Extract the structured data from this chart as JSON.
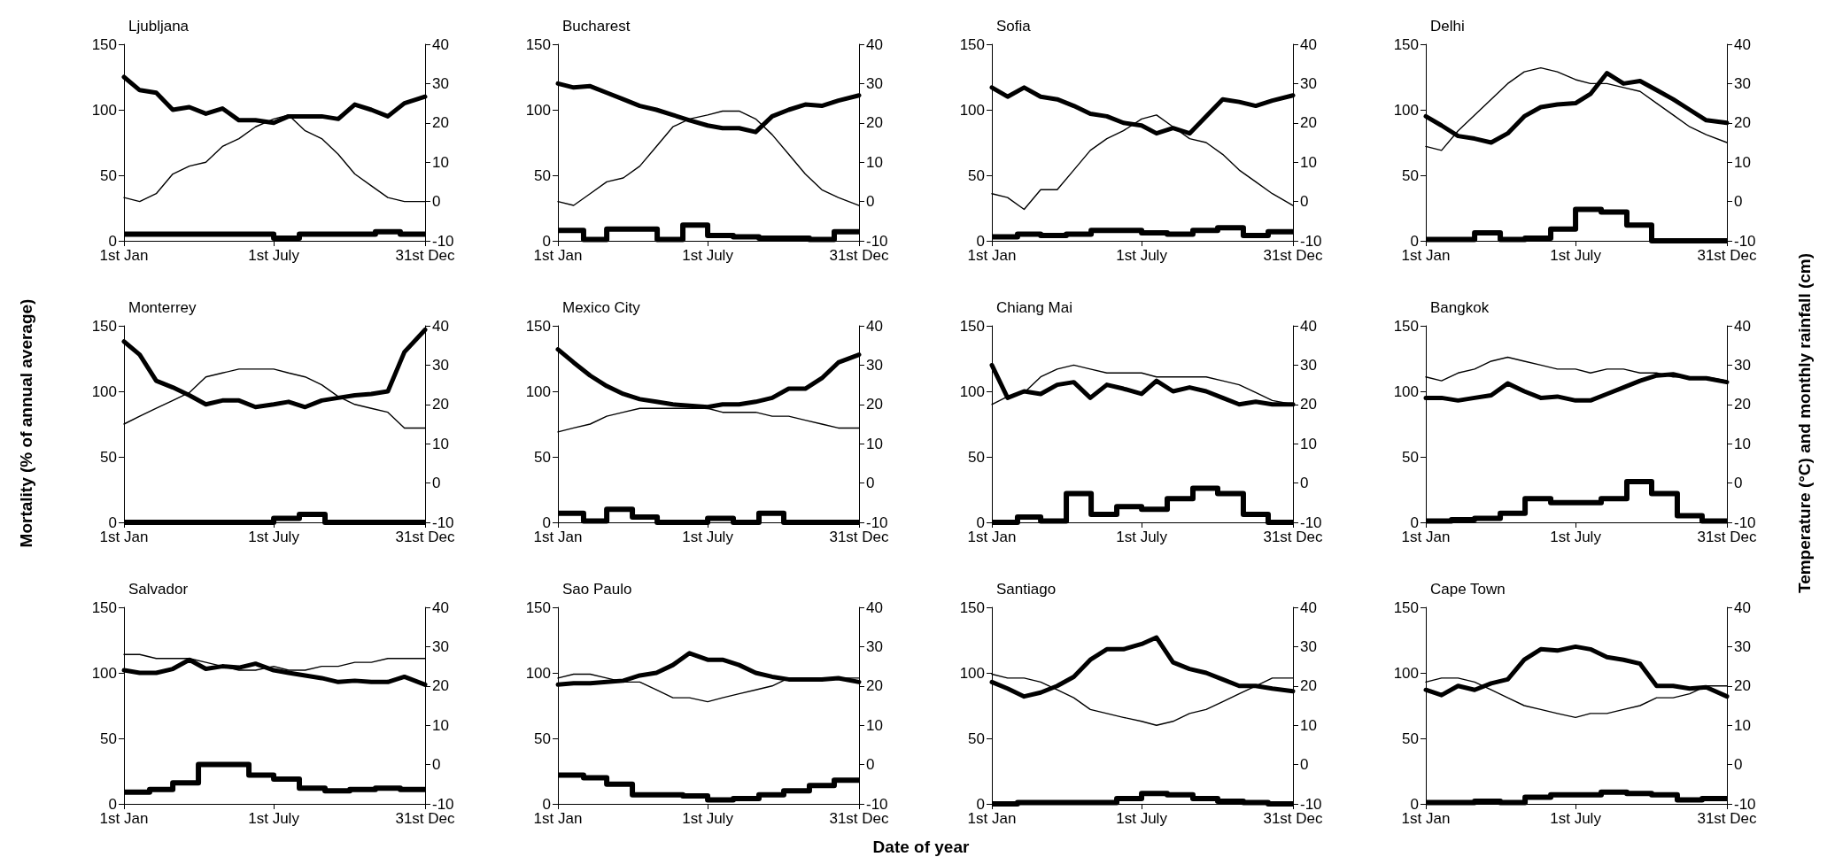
{
  "chart_data": [
    {
      "type": "line",
      "title": "Ljubljana",
      "x": [
        "--01-01",
        "--01-20",
        "--02-09",
        "--03-01",
        "--03-21",
        "--04-10",
        "--04-30",
        "--05-20",
        "--06-09",
        "--07-01",
        "--07-19",
        "--08-08",
        "--08-28",
        "--09-17",
        "--10-07",
        "--10-27",
        "--11-16",
        "--12-06",
        "--12-31"
      ],
      "xlim": [
        "--01-01",
        "--12-31"
      ],
      "xticks": [
        {
          "value": "--01-01",
          "label": "1st Jan"
        },
        {
          "value": "--07-01",
          "label": "1st July"
        },
        {
          "value": "--12-31",
          "label": "31st Dec"
        }
      ],
      "ylim": [
        0,
        150
      ],
      "yticks": [
        0,
        50,
        100,
        150
      ],
      "y2lim": [
        -10,
        40
      ],
      "y2ticks": [
        -10,
        0,
        10,
        20,
        30,
        40
      ],
      "marker": "none",
      "grid": false,
      "series": [
        {
          "color": "#000000",
          "values": [
            125,
            115,
            113,
            100,
            102,
            97,
            101,
            92,
            92,
            90,
            95,
            95,
            95,
            93,
            104,
            100,
            95,
            105,
            110
          ]
        },
        {
          "color": "#000000",
          "axis": "y2",
          "values": [
            1,
            0,
            2,
            7,
            9,
            10,
            14,
            16,
            19,
            21,
            22,
            18,
            16,
            12,
            7,
            4,
            1,
            0,
            0
          ]
        },
        {
          "type": "step",
          "color": "#000000",
          "x": [
            "--01-01",
            "--02-01",
            "--03-01",
            "--04-01",
            "--05-01",
            "--06-01",
            "--07-01",
            "--08-01",
            "--09-01",
            "--10-01",
            "--11-01",
            "--12-01",
            "--12-31"
          ],
          "values": [
            5,
            5,
            5,
            5,
            5,
            5,
            2,
            5,
            5,
            5,
            7,
            5,
            5
          ]
        }
      ]
    },
    {
      "type": "line",
      "title": "Bucharest",
      "x": [
        "--01-01",
        "--01-20",
        "--02-09",
        "--03-01",
        "--03-21",
        "--04-10",
        "--04-30",
        "--05-20",
        "--06-09",
        "--07-01",
        "--07-19",
        "--08-08",
        "--08-28",
        "--09-17",
        "--10-07",
        "--10-27",
        "--11-16",
        "--12-06",
        "--12-31"
      ],
      "xlim": [
        "--01-01",
        "--12-31"
      ],
      "xticks": [
        {
          "value": "--01-01",
          "label": "1st Jan"
        },
        {
          "value": "--07-01",
          "label": "1st July"
        },
        {
          "value": "--12-31",
          "label": "31st Dec"
        }
      ],
      "ylim": [
        0,
        150
      ],
      "yticks": [
        0,
        50,
        100,
        150
      ],
      "y2lim": [
        -10,
        40
      ],
      "y2ticks": [
        -10,
        0,
        10,
        20,
        30,
        40
      ],
      "marker": "none",
      "grid": false,
      "series": [
        {
          "color": "#000000",
          "values": [
            120,
            117,
            118,
            113,
            108,
            103,
            100,
            96,
            92,
            88,
            86,
            86,
            83,
            95,
            100,
            104,
            103,
            107,
            111
          ]
        },
        {
          "color": "#000000",
          "axis": "y2",
          "values": [
            0,
            -1,
            2,
            5,
            6,
            9,
            14,
            19,
            21,
            22,
            23,
            23,
            21,
            17,
            12,
            7,
            3,
            1,
            -1
          ]
        },
        {
          "type": "step",
          "color": "#000000",
          "x": [
            "--01-01",
            "--02-01",
            "--03-01",
            "--04-01",
            "--05-01",
            "--06-01",
            "--07-01",
            "--08-01",
            "--09-01",
            "--10-01",
            "--11-01",
            "--12-01",
            "--12-31"
          ],
          "values": [
            8,
            1,
            9,
            9,
            1,
            12,
            4,
            3,
            2,
            2,
            1,
            7,
            7
          ]
        }
      ]
    },
    {
      "type": "line",
      "title": "Sofia",
      "x": [
        "--01-01",
        "--01-20",
        "--02-09",
        "--03-01",
        "--03-21",
        "--04-10",
        "--04-30",
        "--05-20",
        "--06-09",
        "--07-01",
        "--07-19",
        "--08-08",
        "--08-28",
        "--09-17",
        "--10-07",
        "--10-27",
        "--11-16",
        "--12-06",
        "--12-31"
      ],
      "xlim": [
        "--01-01",
        "--12-31"
      ],
      "xticks": [
        {
          "value": "--01-01",
          "label": "1st Jan"
        },
        {
          "value": "--07-01",
          "label": "1st July"
        },
        {
          "value": "--12-31",
          "label": "31st Dec"
        }
      ],
      "ylim": [
        0,
        150
      ],
      "yticks": [
        0,
        50,
        100,
        150
      ],
      "y2lim": [
        -10,
        40
      ],
      "y2ticks": [
        -10,
        0,
        10,
        20,
        30,
        40
      ],
      "marker": "none",
      "grid": false,
      "series": [
        {
          "color": "#000000",
          "values": [
            117,
            110,
            117,
            110,
            108,
            103,
            97,
            95,
            90,
            88,
            82,
            86,
            82,
            95,
            108,
            106,
            103,
            107,
            111
          ]
        },
        {
          "color": "#000000",
          "axis": "y2",
          "values": [
            2,
            1,
            -2,
            3,
            3,
            8,
            13,
            16,
            18,
            21,
            22,
            19,
            16,
            15,
            12,
            8,
            5,
            2,
            -1
          ]
        },
        {
          "type": "step",
          "color": "#000000",
          "x": [
            "--01-01",
            "--02-01",
            "--03-01",
            "--04-01",
            "--05-01",
            "--06-01",
            "--07-01",
            "--08-01",
            "--09-01",
            "--10-01",
            "--11-01",
            "--12-01",
            "--12-31"
          ],
          "values": [
            3,
            5,
            4,
            5,
            8,
            8,
            6,
            5,
            8,
            10,
            4,
            7,
            7
          ]
        }
      ]
    },
    {
      "type": "line",
      "title": "Delhi",
      "x": [
        "--01-01",
        "--01-20",
        "--02-09",
        "--03-01",
        "--03-21",
        "--04-10",
        "--04-30",
        "--05-20",
        "--06-09",
        "--07-01",
        "--07-19",
        "--08-08",
        "--08-28",
        "--09-17",
        "--10-07",
        "--10-27",
        "--11-16",
        "--12-06",
        "--12-31"
      ],
      "xlim": [
        "--01-01",
        "--12-31"
      ],
      "xticks": [
        {
          "value": "--01-01",
          "label": "1st Jan"
        },
        {
          "value": "--07-01",
          "label": "1st July"
        },
        {
          "value": "--12-31",
          "label": "31st Dec"
        }
      ],
      "ylim": [
        0,
        150
      ],
      "yticks": [
        0,
        50,
        100,
        150
      ],
      "y2lim": [
        -10,
        40
      ],
      "y2ticks": [
        -10,
        0,
        10,
        20,
        30,
        40
      ],
      "marker": "none",
      "grid": false,
      "series": [
        {
          "color": "#000000",
          "values": [
            95,
            88,
            80,
            78,
            75,
            82,
            95,
            102,
            104,
            105,
            112,
            128,
            120,
            122,
            115,
            108,
            100,
            92,
            90
          ]
        },
        {
          "color": "#000000",
          "axis": "y2",
          "values": [
            14,
            13,
            18,
            22,
            26,
            30,
            33,
            34,
            33,
            31,
            30,
            30,
            29,
            28,
            25,
            22,
            19,
            17,
            15
          ]
        },
        {
          "type": "step",
          "color": "#000000",
          "x": [
            "--01-01",
            "--02-01",
            "--03-01",
            "--04-01",
            "--05-01",
            "--06-01",
            "--07-01",
            "--08-01",
            "--09-01",
            "--10-01",
            "--11-01",
            "--12-01",
            "--12-31"
          ],
          "values": [
            1,
            1,
            6,
            1,
            2,
            9,
            24,
            22,
            12,
            0,
            0,
            0,
            0
          ]
        }
      ]
    },
    {
      "type": "line",
      "title": "Monterrey",
      "ylabel": "Mortality (% of annual average)",
      "x": [
        "--01-01",
        "--01-20",
        "--02-09",
        "--03-01",
        "--03-21",
        "--04-10",
        "--04-30",
        "--05-20",
        "--06-09",
        "--07-01",
        "--07-19",
        "--08-08",
        "--08-28",
        "--09-17",
        "--10-07",
        "--10-27",
        "--11-16",
        "--12-06",
        "--12-31"
      ],
      "xlim": [
        "--01-01",
        "--12-31"
      ],
      "xticks": [
        {
          "value": "--01-01",
          "label": "1st Jan"
        },
        {
          "value": "--07-01",
          "label": "1st July"
        },
        {
          "value": "--12-31",
          "label": "31st Dec"
        }
      ],
      "ylim": [
        0,
        150
      ],
      "yticks": [
        0,
        50,
        100,
        150
      ],
      "y2lim": [
        -10,
        40
      ],
      "y2ticks": [
        -10,
        0,
        10,
        20,
        30,
        40
      ],
      "marker": "none",
      "grid": false,
      "series": [
        {
          "color": "#000000",
          "values": [
            138,
            128,
            108,
            103,
            97,
            90,
            93,
            93,
            88,
            90,
            92,
            88,
            93,
            95,
            97,
            98,
            100,
            130,
            147
          ]
        },
        {
          "color": "#000000",
          "axis": "y2",
          "values": [
            15,
            17,
            19,
            21,
            23,
            27,
            28,
            29,
            29,
            29,
            28,
            27,
            25,
            22,
            20,
            19,
            18,
            14,
            14
          ]
        },
        {
          "type": "step",
          "color": "#000000",
          "x": [
            "--01-01",
            "--02-01",
            "--03-01",
            "--04-01",
            "--05-01",
            "--06-01",
            "--07-01",
            "--08-01",
            "--09-01",
            "--10-01",
            "--11-01",
            "--12-01",
            "--12-31"
          ],
          "values": [
            0,
            0,
            0,
            0,
            0,
            0,
            3,
            6,
            0,
            0,
            0,
            0,
            0
          ]
        }
      ]
    },
    {
      "type": "line",
      "title": "Mexico City",
      "x": [
        "--01-01",
        "--01-20",
        "--02-09",
        "--03-01",
        "--03-21",
        "--04-10",
        "--04-30",
        "--05-20",
        "--06-09",
        "--07-01",
        "--07-19",
        "--08-08",
        "--08-28",
        "--09-17",
        "--10-07",
        "--10-27",
        "--11-16",
        "--12-06",
        "--12-31"
      ],
      "xlim": [
        "--01-01",
        "--12-31"
      ],
      "xticks": [
        {
          "value": "--01-01",
          "label": "1st Jan"
        },
        {
          "value": "--07-01",
          "label": "1st July"
        },
        {
          "value": "--12-31",
          "label": "31st Dec"
        }
      ],
      "ylim": [
        0,
        150
      ],
      "yticks": [
        0,
        50,
        100,
        150
      ],
      "y2lim": [
        -10,
        40
      ],
      "y2ticks": [
        -10,
        0,
        10,
        20,
        30,
        40
      ],
      "marker": "none",
      "grid": false,
      "series": [
        {
          "color": "#000000",
          "values": [
            132,
            122,
            112,
            104,
            98,
            94,
            92,
            90,
            89,
            88,
            90,
            90,
            92,
            95,
            102,
            102,
            110,
            122,
            128
          ]
        },
        {
          "color": "#000000",
          "axis": "y2",
          "values": [
            13,
            14,
            15,
            17,
            18,
            19,
            19,
            19,
            19,
            19,
            18,
            18,
            18,
            17,
            17,
            16,
            15,
            14,
            14
          ]
        },
        {
          "type": "step",
          "color": "#000000",
          "x": [
            "--01-01",
            "--02-01",
            "--03-01",
            "--04-01",
            "--05-01",
            "--06-01",
            "--07-01",
            "--08-01",
            "--09-01",
            "--10-01",
            "--11-01",
            "--12-01",
            "--12-31"
          ],
          "values": [
            7,
            1,
            10,
            4,
            0,
            0,
            3,
            0,
            7,
            0,
            0,
            0,
            0
          ]
        }
      ]
    },
    {
      "type": "line",
      "title": "Chiang Mai",
      "x": [
        "--01-01",
        "--01-20",
        "--02-09",
        "--03-01",
        "--03-21",
        "--04-10",
        "--04-30",
        "--05-20",
        "--06-09",
        "--07-01",
        "--07-19",
        "--08-08",
        "--08-28",
        "--09-17",
        "--10-07",
        "--10-27",
        "--11-16",
        "--12-06",
        "--12-31"
      ],
      "xlim": [
        "--01-01",
        "--12-31"
      ],
      "xticks": [
        {
          "value": "--01-01",
          "label": "1st Jan"
        },
        {
          "value": "--07-01",
          "label": "1st July"
        },
        {
          "value": "--12-31",
          "label": "31st Dec"
        }
      ],
      "ylim": [
        0,
        150
      ],
      "yticks": [
        0,
        50,
        100,
        150
      ],
      "y2lim": [
        -10,
        40
      ],
      "y2ticks": [
        -10,
        0,
        10,
        20,
        30,
        40
      ],
      "marker": "none",
      "grid": false,
      "series": [
        {
          "color": "#000000",
          "values": [
            120,
            95,
            100,
            98,
            105,
            107,
            95,
            105,
            102,
            98,
            108,
            100,
            103,
            100,
            95,
            90,
            92,
            90,
            90
          ]
        },
        {
          "color": "#000000",
          "axis": "y2",
          "values": [
            20,
            22,
            23,
            27,
            29,
            30,
            29,
            28,
            28,
            28,
            27,
            27,
            27,
            27,
            26,
            25,
            23,
            21,
            20
          ]
        },
        {
          "type": "step",
          "color": "#000000",
          "x": [
            "--01-01",
            "--02-01",
            "--03-01",
            "--04-01",
            "--05-01",
            "--06-01",
            "--07-01",
            "--08-01",
            "--09-01",
            "--10-01",
            "--11-01",
            "--12-01",
            "--12-31"
          ],
          "values": [
            0,
            4,
            1,
            22,
            6,
            12,
            10,
            18,
            26,
            22,
            6,
            0,
            0
          ]
        }
      ]
    },
    {
      "type": "line",
      "title": "Bangkok",
      "y2label": "Temperature (°C) and monthly rainfall (cm)",
      "x": [
        "--01-01",
        "--01-20",
        "--02-09",
        "--03-01",
        "--03-21",
        "--04-10",
        "--04-30",
        "--05-20",
        "--06-09",
        "--07-01",
        "--07-19",
        "--08-08",
        "--08-28",
        "--09-17",
        "--10-07",
        "--10-27",
        "--11-16",
        "--12-06",
        "--12-31"
      ],
      "xlim": [
        "--01-01",
        "--12-31"
      ],
      "xticks": [
        {
          "value": "--01-01",
          "label": "1st Jan"
        },
        {
          "value": "--07-01",
          "label": "1st July"
        },
        {
          "value": "--12-31",
          "label": "31st Dec"
        }
      ],
      "ylim": [
        0,
        150
      ],
      "yticks": [
        0,
        50,
        100,
        150
      ],
      "y2lim": [
        -10,
        40
      ],
      "y2ticks": [
        -10,
        0,
        10,
        20,
        30,
        40
      ],
      "marker": "none",
      "grid": false,
      "series": [
        {
          "color": "#000000",
          "values": [
            95,
            95,
            93,
            95,
            97,
            106,
            100,
            95,
            96,
            93,
            93,
            98,
            103,
            108,
            112,
            113,
            110,
            110,
            107
          ]
        },
        {
          "color": "#000000",
          "axis": "y2",
          "values": [
            27,
            26,
            28,
            29,
            31,
            32,
            31,
            30,
            29,
            29,
            28,
            29,
            29,
            28,
            28,
            27,
            27,
            27,
            26
          ]
        },
        {
          "type": "step",
          "color": "#000000",
          "x": [
            "--01-01",
            "--02-01",
            "--03-01",
            "--04-01",
            "--05-01",
            "--06-01",
            "--07-01",
            "--08-01",
            "--09-01",
            "--10-01",
            "--11-01",
            "--12-01",
            "--12-31"
          ],
          "values": [
            1,
            2,
            3,
            7,
            18,
            15,
            15,
            18,
            31,
            22,
            5,
            1,
            1
          ]
        }
      ]
    },
    {
      "type": "line",
      "title": "Salvador",
      "x": [
        "--01-01",
        "--01-20",
        "--02-09",
        "--03-01",
        "--03-21",
        "--04-10",
        "--04-30",
        "--05-20",
        "--06-09",
        "--07-01",
        "--07-19",
        "--08-08",
        "--08-28",
        "--09-17",
        "--10-07",
        "--10-27",
        "--11-16",
        "--12-06",
        "--12-31"
      ],
      "xlim": [
        "--01-01",
        "--12-31"
      ],
      "xticks": [
        {
          "value": "--01-01",
          "label": "1st Jan"
        },
        {
          "value": "--07-01",
          "label": "1st July"
        },
        {
          "value": "--12-31",
          "label": "31st Dec"
        }
      ],
      "ylim": [
        0,
        150
      ],
      "yticks": [
        0,
        50,
        100,
        150
      ],
      "y2lim": [
        -10,
        40
      ],
      "y2ticks": [
        -10,
        0,
        10,
        20,
        30,
        40
      ],
      "marker": "none",
      "grid": false,
      "series": [
        {
          "color": "#000000",
          "values": [
            102,
            100,
            100,
            103,
            110,
            103,
            105,
            104,
            107,
            102,
            100,
            98,
            96,
            93,
            94,
            93,
            93,
            97,
            91
          ]
        },
        {
          "color": "#000000",
          "axis": "y2",
          "values": [
            28,
            28,
            27,
            27,
            27,
            26,
            25,
            24,
            24,
            25,
            24,
            24,
            25,
            25,
            26,
            26,
            27,
            27,
            27
          ]
        },
        {
          "type": "step",
          "color": "#000000",
          "x": [
            "--01-01",
            "--02-01",
            "--03-01",
            "--04-01",
            "--05-01",
            "--06-01",
            "--07-01",
            "--08-01",
            "--09-01",
            "--10-01",
            "--11-01",
            "--12-01",
            "--12-31"
          ],
          "values": [
            9,
            11,
            16,
            30,
            30,
            22,
            19,
            12,
            10,
            11,
            12,
            11,
            11
          ]
        }
      ]
    },
    {
      "type": "line",
      "title": "Sao Paulo",
      "xlabel": "Date of year",
      "x": [
        "--01-01",
        "--01-20",
        "--02-09",
        "--03-01",
        "--03-21",
        "--04-10",
        "--04-30",
        "--05-20",
        "--06-09",
        "--07-01",
        "--07-19",
        "--08-08",
        "--08-28",
        "--09-17",
        "--10-07",
        "--10-27",
        "--11-16",
        "--12-06",
        "--12-31"
      ],
      "xlim": [
        "--01-01",
        "--12-31"
      ],
      "xticks": [
        {
          "value": "--01-01",
          "label": "1st Jan"
        },
        {
          "value": "--07-01",
          "label": "1st July"
        },
        {
          "value": "--12-31",
          "label": "31st Dec"
        }
      ],
      "ylim": [
        0,
        150
      ],
      "yticks": [
        0,
        50,
        100,
        150
      ],
      "y2lim": [
        -10,
        40
      ],
      "y2ticks": [
        -10,
        0,
        10,
        20,
        30,
        40
      ],
      "marker": "none",
      "grid": false,
      "series": [
        {
          "color": "#000000",
          "values": [
            91,
            92,
            92,
            93,
            94,
            98,
            100,
            106,
            115,
            110,
            110,
            106,
            100,
            97,
            95,
            95,
            95,
            96,
            93
          ]
        },
        {
          "color": "#000000",
          "axis": "y2",
          "values": [
            22,
            23,
            23,
            22,
            21,
            21,
            19,
            17,
            17,
            16,
            17,
            18,
            19,
            20,
            22,
            22,
            22,
            22,
            22
          ]
        },
        {
          "type": "step",
          "color": "#000000",
          "x": [
            "--01-01",
            "--02-01",
            "--03-01",
            "--04-01",
            "--05-01",
            "--06-01",
            "--07-01",
            "--08-01",
            "--09-01",
            "--10-01",
            "--11-01",
            "--12-01",
            "--12-31"
          ],
          "values": [
            22,
            20,
            15,
            7,
            7,
            6,
            3,
            4,
            7,
            10,
            14,
            18,
            18
          ]
        }
      ]
    },
    {
      "type": "line",
      "title": "Santiago",
      "x": [
        "--01-01",
        "--01-20",
        "--02-09",
        "--03-01",
        "--03-21",
        "--04-10",
        "--04-30",
        "--05-20",
        "--06-09",
        "--07-01",
        "--07-19",
        "--08-08",
        "--08-28",
        "--09-17",
        "--10-07",
        "--10-27",
        "--11-16",
        "--12-06",
        "--12-31"
      ],
      "xlim": [
        "--01-01",
        "--12-31"
      ],
      "xticks": [
        {
          "value": "--01-01",
          "label": "1st Jan"
        },
        {
          "value": "--07-01",
          "label": "1st July"
        },
        {
          "value": "--12-31",
          "label": "31st Dec"
        }
      ],
      "ylim": [
        0,
        150
      ],
      "yticks": [
        0,
        50,
        100,
        150
      ],
      "y2lim": [
        -10,
        40
      ],
      "y2ticks": [
        -10,
        0,
        10,
        20,
        30,
        40
      ],
      "marker": "none",
      "grid": false,
      "series": [
        {
          "color": "#000000",
          "values": [
            93,
            88,
            82,
            85,
            90,
            97,
            110,
            118,
            118,
            122,
            127,
            108,
            103,
            100,
            95,
            90,
            90,
            88,
            86
          ]
        },
        {
          "color": "#000000",
          "axis": "y2",
          "values": [
            23,
            22,
            22,
            21,
            19,
            17,
            14,
            13,
            12,
            11,
            10,
            11,
            13,
            14,
            16,
            18,
            20,
            22,
            22
          ]
        },
        {
          "type": "step",
          "color": "#000000",
          "x": [
            "--01-01",
            "--02-01",
            "--03-01",
            "--04-01",
            "--05-01",
            "--06-01",
            "--07-01",
            "--08-01",
            "--09-01",
            "--10-01",
            "--11-01",
            "--12-01",
            "--12-31"
          ],
          "values": [
            0,
            1,
            1,
            1,
            1,
            4,
            8,
            7,
            4,
            2,
            1,
            0,
            0
          ]
        }
      ]
    },
    {
      "type": "line",
      "title": "Cape Town",
      "x": [
        "--01-01",
        "--01-20",
        "--02-09",
        "--03-01",
        "--03-21",
        "--04-10",
        "--04-30",
        "--05-20",
        "--06-09",
        "--07-01",
        "--07-19",
        "--08-08",
        "--08-28",
        "--09-17",
        "--10-07",
        "--10-27",
        "--11-16",
        "--12-06",
        "--12-31"
      ],
      "xlim": [
        "--01-01",
        "--12-31"
      ],
      "xticks": [
        {
          "value": "--01-01",
          "label": "1st Jan"
        },
        {
          "value": "--07-01",
          "label": "1st July"
        },
        {
          "value": "--12-31",
          "label": "31st Dec"
        }
      ],
      "ylim": [
        0,
        150
      ],
      "yticks": [
        0,
        50,
        100,
        150
      ],
      "y2lim": [
        -10,
        40
      ],
      "y2ticks": [
        -10,
        0,
        10,
        20,
        30,
        40
      ],
      "marker": "none",
      "grid": false,
      "series": [
        {
          "color": "#000000",
          "values": [
            87,
            83,
            90,
            87,
            92,
            95,
            110,
            118,
            117,
            120,
            118,
            112,
            110,
            107,
            90,
            90,
            88,
            89,
            82
          ]
        },
        {
          "color": "#000000",
          "axis": "y2",
          "values": [
            21,
            22,
            22,
            21,
            19,
            17,
            15,
            14,
            13,
            12,
            13,
            13,
            14,
            15,
            17,
            17,
            18,
            20,
            20
          ]
        },
        {
          "type": "step",
          "color": "#000000",
          "x": [
            "--01-01",
            "--02-01",
            "--03-01",
            "--04-01",
            "--05-01",
            "--06-01",
            "--07-01",
            "--08-01",
            "--09-01",
            "--10-01",
            "--11-01",
            "--12-01",
            "--12-31"
          ],
          "values": [
            1,
            1,
            2,
            1,
            5,
            7,
            7,
            9,
            8,
            7,
            3,
            4,
            4
          ]
        }
      ]
    }
  ]
}
